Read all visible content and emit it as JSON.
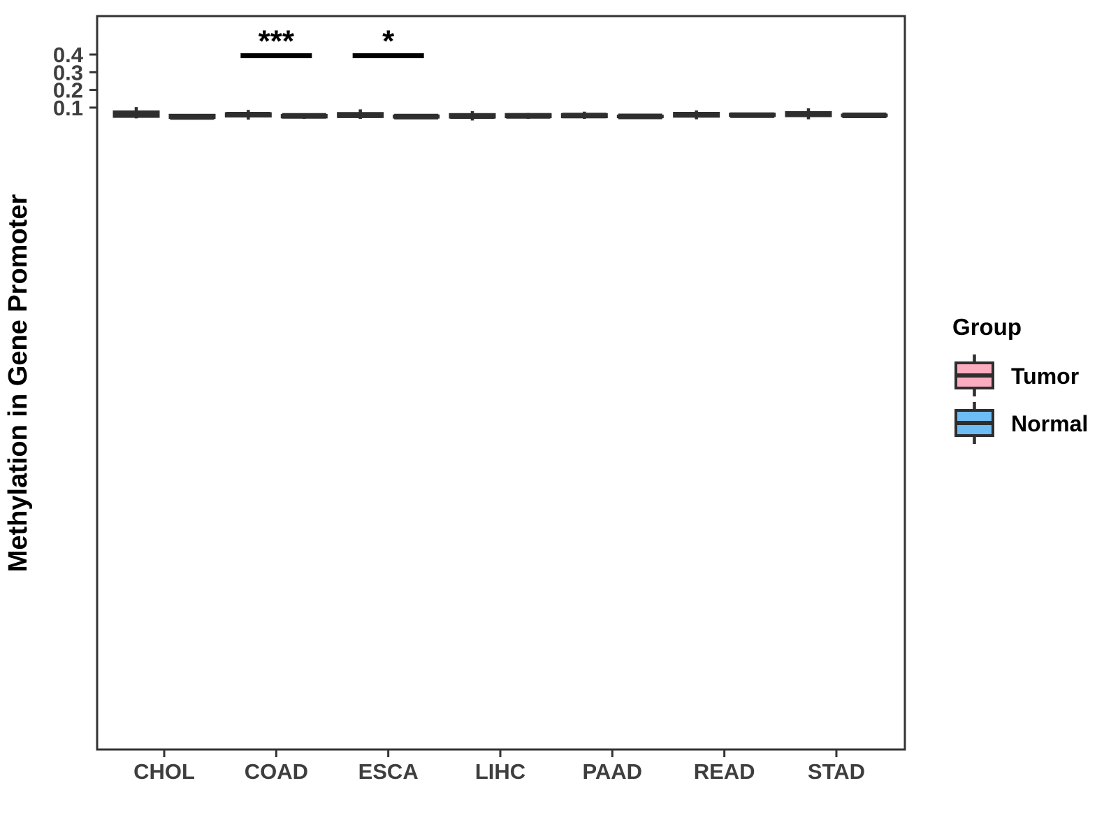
{
  "figure": {
    "background": "#ffffff",
    "panel_border_color": "#333333",
    "box_outline_color": "#2e2e2e",
    "tick_label_color": "#3e3e3e"
  },
  "legend": {
    "title": "Group",
    "entries": [
      {
        "label": "Tumor",
        "color": "#fbadbf"
      },
      {
        "label": "Normal",
        "color": "#6cbcf5"
      }
    ]
  },
  "chart_data": {
    "type": "boxplot",
    "title": "",
    "xlabel": "",
    "ylabel": "Methylation in Gene Promoter",
    "categories": [
      "CHOL",
      "COAD",
      "ESCA",
      "LIHC",
      "PAAD",
      "READ",
      "STAD"
    ],
    "ylim": [
      0.007,
      0.422
    ],
    "yticks": [
      {
        "value": 0.1,
        "label": "0.1"
      },
      {
        "value": 0.2,
        "label": "0.2"
      },
      {
        "value": 0.3,
        "label": "0.3"
      },
      {
        "value": 0.4,
        "label": "0.4"
      }
    ],
    "grid": "off",
    "legend_position": "right",
    "series": [
      {
        "name": "Tumor",
        "fill": "#fbadbf",
        "boxes": [
          {
            "category": "CHOL",
            "low": 0.039,
            "q1": 0.05,
            "median": 0.065,
            "q3": 0.076,
            "high": 0.103
          },
          {
            "category": "COAD",
            "low": 0.032,
            "q1": 0.052,
            "median": 0.06,
            "q3": 0.066,
            "high": 0.087
          },
          {
            "category": "ESCA",
            "low": 0.036,
            "q1": 0.049,
            "median": 0.057,
            "q3": 0.067,
            "high": 0.09
          },
          {
            "category": "LIHC",
            "low": 0.027,
            "q1": 0.046,
            "median": 0.052,
            "q3": 0.061,
            "high": 0.08
          },
          {
            "category": "PAAD",
            "low": 0.036,
            "q1": 0.048,
            "median": 0.055,
            "q3": 0.061,
            "high": 0.077
          },
          {
            "category": "READ",
            "low": 0.034,
            "q1": 0.051,
            "median": 0.06,
            "q3": 0.068,
            "high": 0.084
          },
          {
            "category": "STAD",
            "low": 0.034,
            "q1": 0.054,
            "median": 0.063,
            "q3": 0.072,
            "high": 0.096
          }
        ]
      },
      {
        "name": "Normal",
        "fill": "#6cbcf5",
        "boxes": [
          {
            "category": "CHOL",
            "low": 0.032,
            "q1": 0.044,
            "median": 0.047,
            "q3": 0.057,
            "high": 0.06
          },
          {
            "category": "COAD",
            "low": 0.036,
            "q1": 0.047,
            "median": 0.053,
            "q3": 0.056,
            "high": 0.066
          },
          {
            "category": "ESCA",
            "low": 0.042,
            "q1": 0.046,
            "median": 0.049,
            "q3": 0.053,
            "high": 0.06
          },
          {
            "category": "LIHC",
            "low": 0.036,
            "q1": 0.048,
            "median": 0.053,
            "q3": 0.061,
            "high": 0.07
          },
          {
            "category": "PAAD",
            "low": 0.047,
            "q1": 0.048,
            "median": 0.05,
            "q3": 0.052,
            "high": 0.054
          },
          {
            "category": "READ",
            "low": 0.048,
            "q1": 0.055,
            "median": 0.057,
            "q3": 0.063,
            "high": 0.069
          },
          {
            "category": "STAD",
            "low": 0.052,
            "q1": 0.054,
            "median": 0.056,
            "q3": 0.058,
            "high": 0.06
          }
        ]
      }
    ],
    "annotations": [
      {
        "category": "COAD",
        "label": "***",
        "y": 0.3935
      },
      {
        "category": "ESCA",
        "label": "*",
        "y": 0.3935
      }
    ]
  }
}
